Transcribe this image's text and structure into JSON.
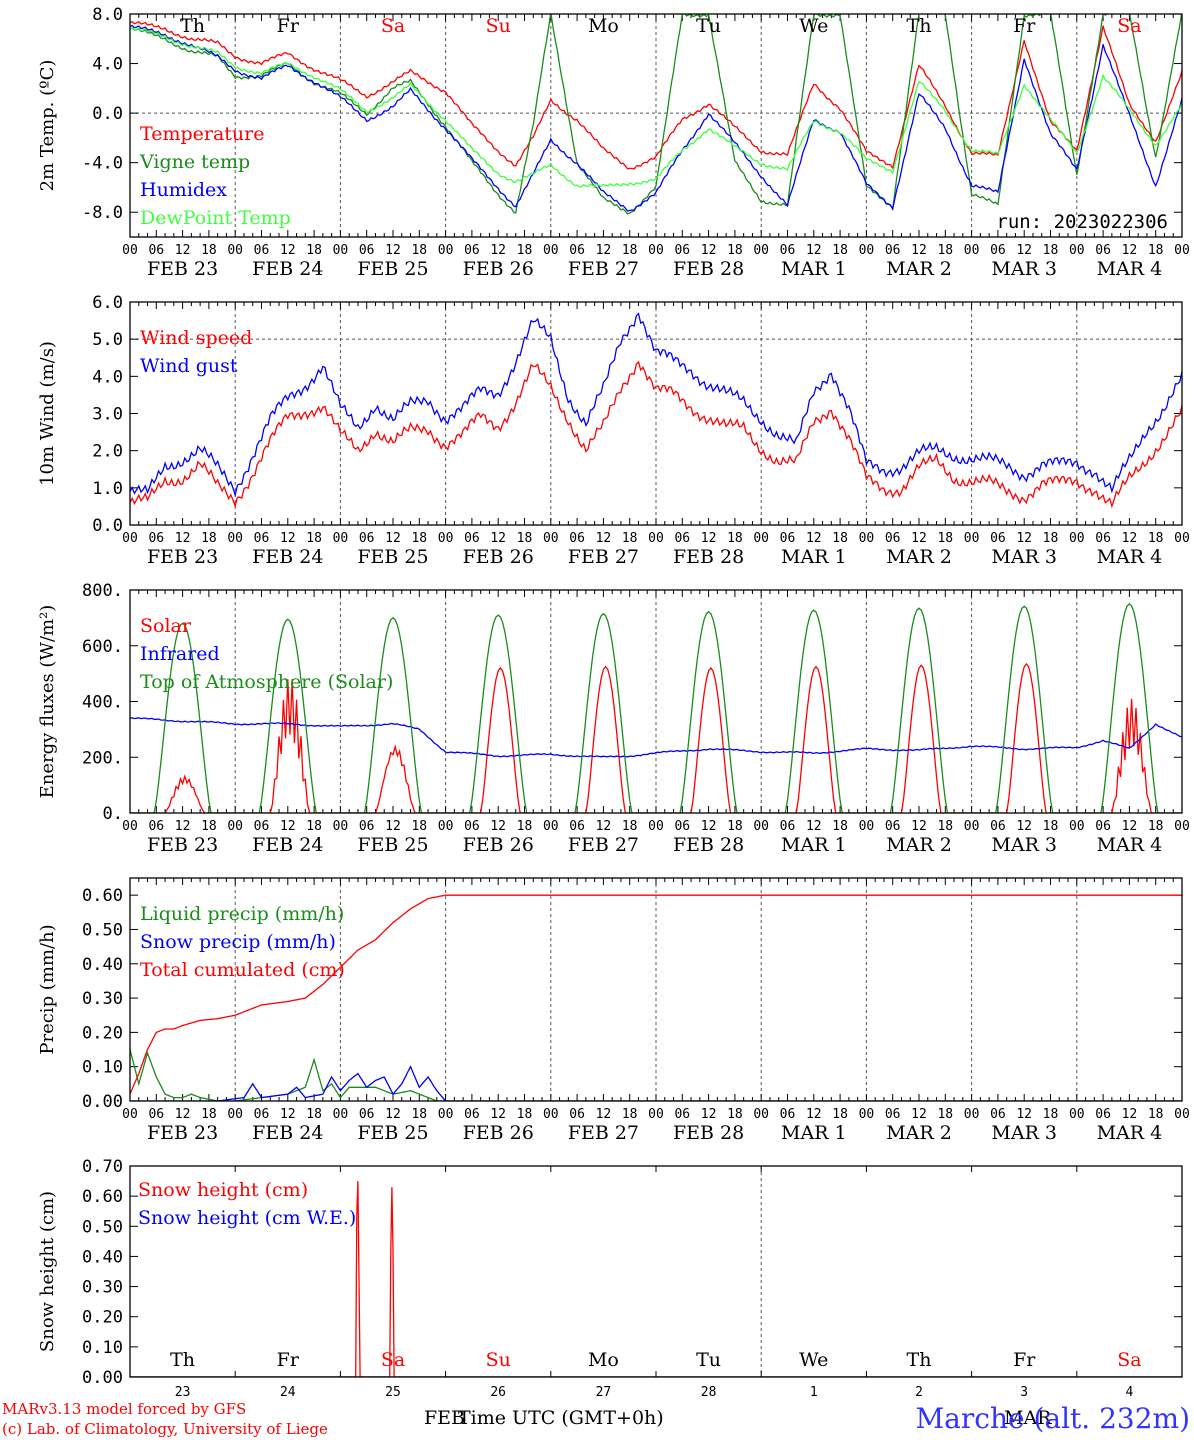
{
  "colors": {
    "red": "#ff0000",
    "green": "#1a8c1a",
    "blue": "#0000ff",
    "lime": "#40ff40",
    "grid": "#555555",
    "title_blue": "#3333ff"
  },
  "footer": {
    "model": "MARv3.13 model forced by GFS",
    "credit": "(c) Lab. of Climatology, University of Liege",
    "xlabel": "Time UTC (GMT+0h)",
    "feb_label": "FEB",
    "mar_label": "MAR",
    "station": "Marche (alt. 232m)"
  },
  "run_label": "run: 2023022306",
  "days": [
    "FEB 23",
    "FEB 24",
    "FEB 25",
    "FEB 26",
    "FEB 27",
    "FEB 28",
    "MAR  1",
    "MAR  2",
    "MAR  3",
    "MAR  4"
  ],
  "day_numbers": [
    "23",
    "24",
    "25",
    "26",
    "27",
    "28",
    "1",
    "2",
    "3",
    "4"
  ],
  "weekdays": [
    {
      "label": "Th",
      "weekend": false
    },
    {
      "label": "Fr",
      "weekend": false
    },
    {
      "label": "Sa",
      "weekend": true
    },
    {
      "label": "Su",
      "weekend": true
    },
    {
      "label": "Mo",
      "weekend": false
    },
    {
      "label": "Tu",
      "weekend": false
    },
    {
      "label": "We",
      "weekend": false
    },
    {
      "label": "Th",
      "weekend": false
    },
    {
      "label": "Fr",
      "weekend": false
    },
    {
      "label": "Sa",
      "weekend": true
    }
  ],
  "hour_ticks": [
    "00",
    "06",
    "12",
    "18"
  ],
  "chart_data": [
    {
      "type": "line",
      "ylabel": "2m Temp. (ºC)",
      "ylim": [
        -10,
        8
      ],
      "yticks": [
        -8,
        -4,
        0,
        4,
        8
      ],
      "ytick_labels": [
        "-8.0",
        "-4.0",
        "0.0",
        "4.0",
        "8.0"
      ],
      "zero_line": 0,
      "x_unit": "hours since FEB 23 00 UTC",
      "legend": [
        "Temperature",
        "Vigne temp",
        "Humidex",
        "DewPoint Temp"
      ],
      "series": [
        {
          "name": "Temperature",
          "color": "red",
          "x": [
            0,
            8,
            14,
            20,
            24,
            30,
            36,
            42,
            48,
            54,
            60,
            64,
            72,
            78,
            84,
            88,
            92,
            96,
            102,
            108,
            114,
            120,
            126,
            132,
            138,
            144,
            150,
            156,
            162,
            168,
            174,
            180,
            186,
            192,
            198,
            204,
            210,
            216,
            222,
            228,
            234,
            240
          ],
          "y": [
            7.3,
            6.8,
            6.0,
            5.6,
            4.6,
            4.0,
            4.8,
            3.6,
            2.6,
            1.4,
            2.5,
            3.3,
            1.8,
            -1.0,
            -3.0,
            -4.2,
            -2.0,
            1.0,
            -0.5,
            -3.0,
            -4.4,
            -3.6,
            -0.5,
            0.8,
            -1.2,
            -3.0,
            -3.4,
            2.4,
            0.4,
            -3.2,
            -4.2,
            3.8,
            0.6,
            -3.2,
            -3.5,
            6.0,
            -0.8,
            -3.0,
            7.0,
            0.6,
            -2.2,
            3.2
          ]
        },
        {
          "name": "Vigne temp",
          "color": "green",
          "x": [
            0,
            8,
            14,
            20,
            24,
            30,
            36,
            42,
            48,
            54,
            60,
            64,
            72,
            78,
            84,
            88,
            92,
            96,
            102,
            108,
            114,
            120,
            126,
            132,
            138,
            144,
            150,
            156,
            162,
            168,
            174,
            180,
            186,
            192,
            198,
            204,
            210,
            216,
            222,
            228,
            234,
            240
          ],
          "y": [
            6.8,
            6.0,
            5.0,
            4.5,
            3.0,
            3.0,
            4.0,
            2.5,
            1.5,
            0.0,
            2.0,
            2.5,
            -1.0,
            -4.0,
            -6.5,
            -8.0,
            -1.0,
            8.0,
            -4.0,
            -7.0,
            -8.0,
            -6.0,
            8.0,
            8.0,
            -4.0,
            -7.0,
            -7.5,
            8.0,
            8.0,
            -6.0,
            -7.5,
            8.0,
            8.0,
            -6.5,
            -7.5,
            8.0,
            8.0,
            -5.0,
            8.0,
            8.0,
            -3.5,
            8.0
          ]
        },
        {
          "name": "Humidex",
          "color": "blue",
          "x": [
            0,
            8,
            14,
            20,
            24,
            30,
            36,
            42,
            48,
            54,
            60,
            64,
            72,
            78,
            84,
            88,
            92,
            96,
            102,
            108,
            114,
            120,
            126,
            132,
            138,
            144,
            150,
            156,
            162,
            168,
            174,
            180,
            186,
            192,
            198,
            204,
            210,
            216,
            222,
            228,
            234,
            240
          ],
          "y": [
            7.0,
            6.3,
            5.5,
            4.5,
            3.5,
            2.8,
            3.8,
            2.6,
            1.2,
            -0.5,
            0.5,
            1.8,
            -1.2,
            -3.8,
            -6.0,
            -7.5,
            -5.0,
            -2.2,
            -4.0,
            -6.5,
            -7.8,
            -6.5,
            -3.0,
            0.0,
            -2.5,
            -5.0,
            -7.5,
            -0.5,
            -1.5,
            -5.8,
            -7.5,
            1.5,
            -1.2,
            -5.8,
            -6.5,
            4.5,
            -1.8,
            -4.5,
            5.5,
            -0.2,
            -5.8,
            1.0
          ]
        },
        {
          "name": "DewPoint Temp",
          "color": "lime",
          "x": [
            0,
            8,
            14,
            20,
            24,
            30,
            36,
            42,
            48,
            54,
            60,
            64,
            72,
            78,
            84,
            88,
            92,
            96,
            102,
            108,
            114,
            120,
            126,
            132,
            138,
            144,
            150,
            156,
            162,
            168,
            174,
            180,
            186,
            192,
            198,
            204,
            210,
            216,
            222,
            228,
            234,
            240
          ],
          "y": [
            6.8,
            6.2,
            5.4,
            4.8,
            3.8,
            3.2,
            4.0,
            3.0,
            1.8,
            0.2,
            1.2,
            2.2,
            -0.5,
            -3.0,
            -4.8,
            -5.5,
            -5.0,
            -4.2,
            -5.8,
            -6.0,
            -5.6,
            -5.4,
            -3.0,
            -1.2,
            -2.8,
            -4.0,
            -4.6,
            -0.6,
            -1.5,
            -3.8,
            -4.6,
            2.5,
            0.2,
            -3.0,
            -3.4,
            2.4,
            -0.6,
            -3.2,
            3.0,
            0.2,
            -2.5,
            0.6
          ]
        }
      ]
    },
    {
      "type": "line",
      "ylabel": "10m Wind (m/s)",
      "ylim": [
        0,
        6
      ],
      "yticks": [
        0,
        1,
        2,
        3,
        4,
        5,
        6
      ],
      "ytick_labels": [
        "0.0",
        "1.0",
        "2.0",
        "3.0",
        "4.0",
        "5.0",
        "6.0"
      ],
      "ref_line": 5,
      "legend": [
        "Wind speed",
        "Wind gust"
      ],
      "series": [
        {
          "name": "Wind speed",
          "color": "red",
          "x": [
            0,
            4,
            8,
            12,
            16,
            20,
            24,
            28,
            32,
            36,
            40,
            44,
            48,
            52,
            56,
            60,
            64,
            68,
            72,
            76,
            80,
            84,
            88,
            92,
            96,
            100,
            104,
            108,
            112,
            116,
            120,
            124,
            128,
            132,
            136,
            140,
            144,
            148,
            152,
            156,
            160,
            164,
            168,
            172,
            176,
            180,
            184,
            188,
            192,
            196,
            200,
            204,
            208,
            212,
            216,
            220,
            224,
            228,
            232,
            236,
            240
          ],
          "y": [
            0.6,
            0.6,
            1.2,
            1.3,
            1.6,
            1.0,
            0.7,
            1.4,
            2.2,
            2.9,
            3.1,
            3.2,
            2.4,
            2.0,
            2.6,
            2.2,
            2.5,
            2.6,
            2.2,
            2.4,
            2.9,
            2.7,
            3.3,
            4.2,
            3.7,
            2.9,
            2.0,
            2.6,
            3.7,
            4.5,
            3.6,
            3.5,
            3.2,
            2.9,
            2.6,
            2.6,
            2.1,
            1.7,
            1.6,
            2.8,
            3.2,
            2.3,
            1.2,
            1.0,
            1.0,
            1.5,
            1.7,
            1.3,
            1.2,
            1.1,
            0.9,
            0.8,
            1.1,
            1.1,
            1.2,
            1.0,
            0.5,
            1.2,
            1.8,
            2.4,
            3.0
          ]
        },
        {
          "name": "Wind gust",
          "color": "blue",
          "x": [
            0,
            4,
            8,
            12,
            16,
            20,
            24,
            28,
            32,
            36,
            40,
            44,
            48,
            52,
            56,
            60,
            64,
            68,
            72,
            76,
            80,
            84,
            88,
            92,
            96,
            100,
            104,
            108,
            112,
            116,
            120,
            124,
            128,
            132,
            136,
            140,
            144,
            148,
            152,
            156,
            160,
            164,
            168,
            172,
            176,
            180,
            184,
            188,
            192,
            196,
            200,
            204,
            208,
            212,
            216,
            220,
            224,
            228,
            232,
            236,
            240
          ],
          "y": [
            0.9,
            0.8,
            1.6,
            1.8,
            2.0,
            1.5,
            1.0,
            1.9,
            2.8,
            3.4,
            3.8,
            4.3,
            3.1,
            2.6,
            3.3,
            2.8,
            3.2,
            3.4,
            2.9,
            3.1,
            3.6,
            3.6,
            4.4,
            5.4,
            5.0,
            3.5,
            2.7,
            3.6,
            5.0,
            5.8,
            4.6,
            4.4,
            4.2,
            3.8,
            3.5,
            3.3,
            2.9,
            2.4,
            2.1,
            3.6,
            4.2,
            3.1,
            1.6,
            1.5,
            1.6,
            1.9,
            2.0,
            1.9,
            1.8,
            1.7,
            1.6,
            1.4,
            1.6,
            1.6,
            1.7,
            1.5,
            0.9,
            1.7,
            2.6,
            3.2,
            3.9
          ]
        }
      ]
    },
    {
      "type": "line",
      "ylabel": "Energy fluxes (W/m²)",
      "ylim": [
        0,
        800
      ],
      "yticks": [
        0,
        200,
        400,
        600,
        800
      ],
      "ytick_labels": [
        "0.",
        "200.",
        "400.",
        "600.",
        "800."
      ],
      "legend": [
        "Solar",
        "Infrared",
        "Top of Atmosphere (Solar)"
      ],
      "series": [
        {
          "name": "Solar",
          "color": "red",
          "daily_peaks": [
            140,
            490,
            260,
            520,
            525,
            520,
            525,
            530,
            535,
            410
          ]
        },
        {
          "name": "Infrared",
          "color": "blue",
          "x": [
            0,
            12,
            24,
            36,
            48,
            60,
            66,
            72,
            84,
            96,
            108,
            114,
            120,
            132,
            144,
            156,
            168,
            180,
            192,
            204,
            216,
            222,
            228,
            234,
            240
          ],
          "y": [
            340,
            330,
            320,
            320,
            310,
            320,
            300,
            220,
            205,
            210,
            200,
            205,
            215,
            230,
            220,
            215,
            230,
            225,
            240,
            230,
            235,
            260,
            230,
            320,
            270
          ]
        },
        {
          "name": "Top of Atmosphere (Solar)",
          "color": "green",
          "daily_peaks": [
            680,
            695,
            700,
            710,
            715,
            722,
            728,
            735,
            742,
            750
          ]
        }
      ]
    },
    {
      "type": "line",
      "ylabel": "Precip (mm/h)",
      "ylim": [
        0,
        0.65
      ],
      "yticks": [
        0,
        0.1,
        0.2,
        0.3,
        0.4,
        0.5,
        0.6
      ],
      "ytick_labels": [
        "0.00",
        "0.10",
        "0.20",
        "0.30",
        "0.40",
        "0.50",
        "0.60"
      ],
      "legend": [
        "Liquid precip (mm/h)",
        "Snow precip (mm/h)",
        "Total cumulated (cm)"
      ],
      "series": [
        {
          "name": "Liquid precip (mm/h)",
          "color": "green",
          "x": [
            0,
            2,
            4,
            6,
            8,
            10,
            12,
            14,
            16,
            20,
            24,
            30,
            36,
            40,
            42,
            44,
            46,
            48,
            50,
            56,
            60,
            64,
            70,
            72
          ],
          "y": [
            0.15,
            0.05,
            0.14,
            0.07,
            0.02,
            0.01,
            0.01,
            0.02,
            0.01,
            0.0,
            0.0,
            0.01,
            0.02,
            0.04,
            0.12,
            0.03,
            0.05,
            0.01,
            0.04,
            0.04,
            0.02,
            0.03,
            0.0,
            0.0
          ]
        },
        {
          "name": "Snow precip (mm/h)",
          "color": "blue",
          "x": [
            0,
            20,
            26,
            28,
            30,
            36,
            38,
            40,
            44,
            46,
            48,
            50,
            52,
            54,
            56,
            58,
            60,
            62,
            64,
            66,
            68,
            70,
            72
          ],
          "y": [
            0.0,
            0.0,
            0.01,
            0.05,
            0.01,
            0.02,
            0.04,
            0.01,
            0.02,
            0.07,
            0.03,
            0.06,
            0.08,
            0.04,
            0.06,
            0.07,
            0.02,
            0.05,
            0.1,
            0.04,
            0.07,
            0.03,
            0.0
          ]
        },
        {
          "name": "Total cumulated (cm)",
          "color": "red",
          "x": [
            0,
            2,
            4,
            6,
            8,
            10,
            12,
            16,
            20,
            24,
            26,
            30,
            36,
            40,
            44,
            48,
            52,
            56,
            60,
            64,
            68,
            72,
            240
          ],
          "y": [
            0.02,
            0.08,
            0.15,
            0.2,
            0.21,
            0.21,
            0.22,
            0.235,
            0.24,
            0.25,
            0.26,
            0.28,
            0.29,
            0.3,
            0.34,
            0.39,
            0.44,
            0.47,
            0.52,
            0.56,
            0.59,
            0.6,
            0.6
          ]
        }
      ]
    },
    {
      "type": "line",
      "ylabel": "Snow height (cm)",
      "ylim": [
        0,
        0.7
      ],
      "yticks": [
        0,
        0.1,
        0.2,
        0.3,
        0.4,
        0.5,
        0.6,
        0.7
      ],
      "ytick_labels": [
        "0.00",
        "0.10",
        "0.20",
        "0.30",
        "0.40",
        "0.50",
        "0.60",
        "0.70"
      ],
      "legend": [
        "Snow height (cm)",
        "Snow height (cm W.E.)"
      ],
      "series": [
        {
          "name": "Snow height (cm)",
          "color": "red",
          "x": [
            0,
            51.5,
            51.8,
            52.1,
            52.4,
            59.3,
            59.6,
            59.9,
            60.2,
            240
          ],
          "y": [
            0,
            0,
            0.65,
            0.65,
            0,
            0,
            0.63,
            0.63,
            0,
            0
          ]
        },
        {
          "name": "Snow height (cm W.E.)",
          "color": "blue",
          "x": [
            0,
            240
          ],
          "y": [
            0,
            0
          ]
        }
      ]
    }
  ]
}
